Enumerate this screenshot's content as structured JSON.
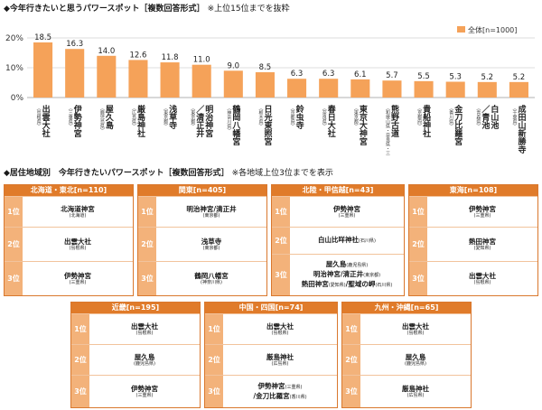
{
  "chart_title": "◆今年行きたいと思うパワースポット［複数回答形式］",
  "chart_title_note": "※上位15位までを抜粋",
  "chart_data": {
    "type": "bar",
    "title": "今年行きたいと思うパワースポット［複数回答形式］",
    "ylim": [
      0,
      20
    ],
    "yticks": [
      "0%",
      "10%",
      "20%"
    ],
    "grid": true,
    "legend_position": "top-right",
    "series": [
      {
        "name": "全体[n=1000]",
        "color": "#f5a259",
        "values": [
          18.5,
          16.3,
          14.0,
          12.6,
          11.8,
          11.0,
          9.0,
          8.5,
          6.3,
          6.3,
          6.1,
          5.7,
          5.5,
          5.3,
          5.2,
          5.2
        ]
      }
    ],
    "value_labels": [
      "18.5",
      "16.3",
      "14.0",
      "12.6",
      "11.8",
      "11.0",
      "9.0",
      "8.5",
      "6.3",
      "6.3",
      "6.1",
      "5.7",
      "5.5",
      "5.3",
      "5.2",
      "5.2"
    ],
    "categories": [
      {
        "name": "出雲大社",
        "pref": "（島根県）"
      },
      {
        "name": "伊勢神宮",
        "pref": "（三重県）"
      },
      {
        "name": "屋久島",
        "pref": "（鹿児島県）"
      },
      {
        "name": "厳島神社",
        "pref": "（広島県）"
      },
      {
        "name": "浅草寺",
        "pref": "（東京都）"
      },
      {
        "name": "明治神宮／清正井",
        "pref": "（東京都）"
      },
      {
        "name": "鶴岡八幡宮",
        "pref": "（神奈川県）"
      },
      {
        "name": "日光東照宮",
        "pref": "（栃木県）"
      },
      {
        "name": "鈴虫寺",
        "pref": "（京都府）"
      },
      {
        "name": "春日大社",
        "pref": "（奈良県）"
      },
      {
        "name": "東京大神宮",
        "pref": "（東京都）"
      },
      {
        "name": "熊野古道",
        "pref": "（和歌山県・奈良県・三重県）"
      },
      {
        "name": "貴船神社",
        "pref": "（京都府）"
      },
      {
        "name": "金刀比羅宮",
        "pref": "（香川県）"
      },
      {
        "name": "白山池／青池",
        "pref": "（青森県）"
      },
      {
        "name": "成田山新勝寺",
        "pref": "（千葉県）"
      }
    ]
  },
  "region_title": "◆居住地域別　今年行きたいパワースポット［複数回答形式］",
  "region_title_note": "※各地域上位3位までを表示",
  "ranks": [
    "1位",
    "2位",
    "3位"
  ],
  "regions": [
    {
      "label": "北海道・東北[n=110]",
      "rows": [
        [
          {
            "name": "北海道神宮",
            "pref": "(北海道)"
          }
        ],
        [
          {
            "name": "出雲大社",
            "pref": "(島根県)"
          }
        ],
        [
          {
            "name": "伊勢神宮",
            "pref": "(三重県)"
          }
        ]
      ]
    },
    {
      "label": "関東[n=405]",
      "rows": [
        [
          {
            "name": "明治神宮/清正井",
            "pref": "(東京都)"
          }
        ],
        [
          {
            "name": "浅草寺",
            "pref": "(東京都)"
          }
        ],
        [
          {
            "name": "鶴岡八幡宮",
            "pref": "(神奈川県)"
          }
        ]
      ]
    },
    {
      "label": "北陸・甲信越[n=43]",
      "rows": [
        [
          {
            "name": "伊勢神宮",
            "pref": "(三重県)"
          }
        ],
        [
          {
            "name": "白山比咩神社",
            "pref": "(石川県)",
            "inline": true
          }
        ],
        [
          {
            "name": "屋久島",
            "pref": "(鹿児島県)",
            "inline": true
          },
          {
            "name": "明治神宮/清正井",
            "pref": "(東京都)",
            "inline": true
          },
          {
            "name": "熱田神宮",
            "pref": "(愛知県)",
            "inline": true,
            "join": "/"
          },
          {
            "name": "聖域の岬",
            "pref": "(石川県)",
            "inline": true,
            "joined": true
          }
        ]
      ]
    },
    {
      "label": "東海[n=108]",
      "rows": [
        [
          {
            "name": "伊勢神宮",
            "pref": "(三重県)"
          }
        ],
        [
          {
            "name": "熱田神宮",
            "pref": "(愛知県)"
          }
        ],
        [
          {
            "name": "出雲大社",
            "pref": "(島根県)"
          }
        ]
      ]
    },
    {
      "label": "近畿[n=195]",
      "rows": [
        [
          {
            "name": "出雲大社",
            "pref": "(島根県)"
          }
        ],
        [
          {
            "name": "屋久島",
            "pref": "(鹿児島県)"
          }
        ],
        [
          {
            "name": "伊勢神宮",
            "pref": "(三重県)"
          }
        ]
      ]
    },
    {
      "label": "中国・四国[n=74]",
      "rows": [
        [
          {
            "name": "出雲大社",
            "pref": "(島根県)"
          }
        ],
        [
          {
            "name": "厳島神社",
            "pref": "(広島県)"
          }
        ],
        [
          {
            "name": "伊勢神宮",
            "pref": "(三重県)",
            "inline": true
          },
          {
            "name": "/金刀比羅宮",
            "pref": "(香川県)",
            "inline": true
          }
        ]
      ]
    },
    {
      "label": "九州・沖縄[n=65]",
      "rows": [
        [
          {
            "name": "出雲大社",
            "pref": "(島根県)"
          }
        ],
        [
          {
            "name": "屋久島",
            "pref": "(鹿児島県)"
          }
        ],
        [
          {
            "name": "厳島神社",
            "pref": "(広島県)"
          }
        ]
      ]
    }
  ]
}
